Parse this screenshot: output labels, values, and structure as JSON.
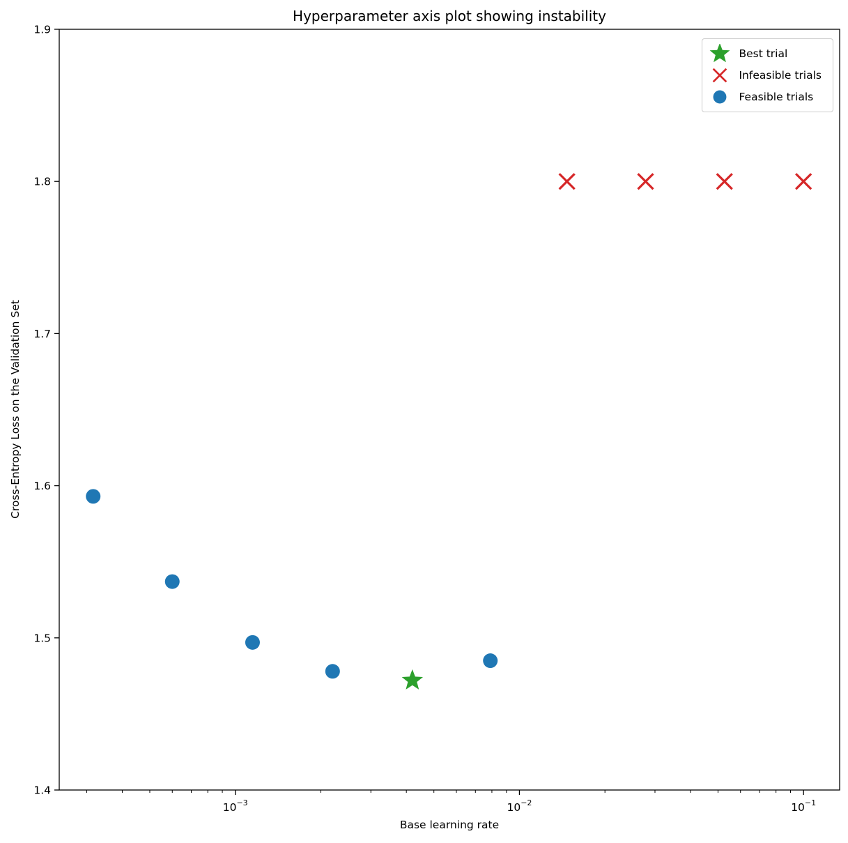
{
  "chart_data": {
    "type": "scatter",
    "title": "Hyperparameter axis plot showing instability",
    "xlabel": "Base learning rate",
    "ylabel": "Cross-Entropy Loss on the Validation Set",
    "xscale": "log",
    "xlim": [
      0.00024,
      0.134
    ],
    "ylim": [
      1.4,
      1.9
    ],
    "yticks": [
      1.4,
      1.5,
      1.6,
      1.7,
      1.8,
      1.9
    ],
    "xticks": [
      {
        "value": 0.001,
        "base": "10",
        "exp": "−3"
      },
      {
        "value": 0.01,
        "base": "10",
        "exp": "−2"
      },
      {
        "value": 0.1,
        "base": "10",
        "exp": "−1"
      }
    ],
    "grid": false,
    "axis_color": "#000000",
    "background": "#ffffff",
    "series": [
      {
        "name": "Feasible trials",
        "marker": "circle",
        "color": "#1f77b4",
        "points": [
          [
            0.000316,
            1.593
          ],
          [
            0.0006,
            1.537
          ],
          [
            0.00115,
            1.497
          ],
          [
            0.0022,
            1.478
          ],
          [
            0.0079,
            1.485
          ]
        ]
      },
      {
        "name": "Infeasible trials",
        "marker": "x",
        "color": "#d62728",
        "points": [
          [
            0.0147,
            1.8
          ],
          [
            0.0278,
            1.8
          ],
          [
            0.0527,
            1.8
          ],
          [
            0.1,
            1.8
          ]
        ]
      },
      {
        "name": "Best trial",
        "marker": "star",
        "color": "#2ca02c",
        "points": [
          [
            0.0042,
            1.472
          ]
        ]
      }
    ],
    "legend": [
      {
        "label": "Best trial",
        "marker": "star",
        "color": "#2ca02c"
      },
      {
        "label": "Infeasible trials",
        "marker": "x",
        "color": "#d62728"
      },
      {
        "label": "Feasible trials",
        "marker": "circle",
        "color": "#1f77b4"
      }
    ],
    "legend_position": "upper right"
  }
}
